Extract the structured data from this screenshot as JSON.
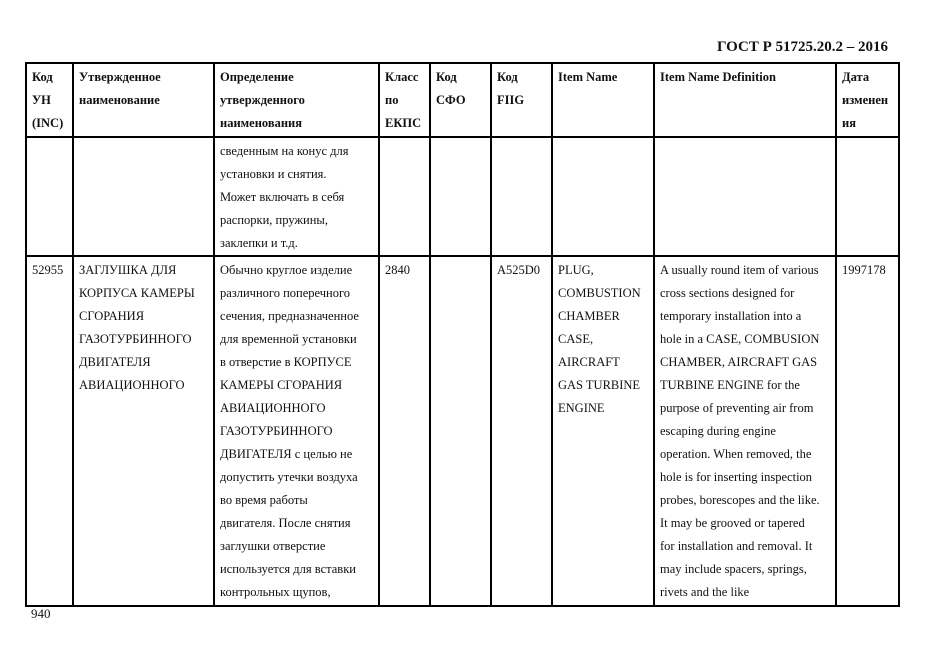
{
  "standard": "ГОСТ Р 51725.20.2 – 2016",
  "page_number": "940",
  "headers": [
    [
      "Код",
      "УН",
      "(INC)"
    ],
    [
      "Утвержденное",
      "наименование"
    ],
    [
      "Определение",
      "утвержденного",
      "наименования"
    ],
    [
      "Класс",
      "по",
      "ЕКПС"
    ],
    [
      "Код",
      "СФО"
    ],
    [
      "Код",
      "FIIG"
    ],
    [
      "Item Name"
    ],
    [
      "Item Name Definition"
    ],
    [
      "Дата",
      "изменен",
      "ия"
    ]
  ],
  "rows": [
    [
      [],
      [],
      [
        "сведенным на конус для",
        "установки и снятия.",
        "Может включать в себя",
        "распорки, пружины,",
        "заклепки и т.д."
      ],
      [],
      [],
      [],
      [],
      [],
      []
    ],
    [
      [
        "52955"
      ],
      [
        "ЗАГЛУШКА ДЛЯ",
        "КОРПУСА КАМЕРЫ",
        "СГОРАНИЯ",
        "ГАЗОТУРБИННОГО",
        "ДВИГАТЕЛЯ",
        "АВИАЦИОННОГО"
      ],
      [
        "Обычно круглое изделие",
        "различного поперечного",
        "сечения, предназначенное",
        "для временной установки",
        "в отверстие в КОРПУСЕ",
        "КАМЕРЫ СГОРАНИЯ",
        "АВИАЦИОННОГО",
        "ГАЗОТУРБИННОГО",
        "ДВИГАТЕЛЯ с целью не",
        "допустить утечки воздуха",
        "во время работы",
        "двигателя. После снятия",
        "заглушки отверстие",
        "используется для вставки",
        "контрольных щупов,"
      ],
      [
        "2840"
      ],
      [],
      [
        "A525D0"
      ],
      [
        "PLUG,",
        "COMBUSTION",
        "CHAMBER",
        "CASE,",
        "AIRCRAFT",
        "GAS TURBINE",
        "ENGINE"
      ],
      [
        "A usually round item of various",
        "cross sections designed for",
        "temporary installation into a",
        "hole in a CASE, COMBUSION",
        "CHAMBER, AIRCRAFT GAS",
        "TURBINE ENGINE for the",
        "purpose of preventing air from",
        "escaping during engine",
        "operation. When removed, the",
        "hole is for inserting inspection",
        "probes, borescopes and the like.",
        "It may be grooved or tapered",
        "for installation and removal. It",
        "may include spacers, springs,",
        "rivets and the like"
      ],
      [
        "1997178"
      ]
    ]
  ]
}
